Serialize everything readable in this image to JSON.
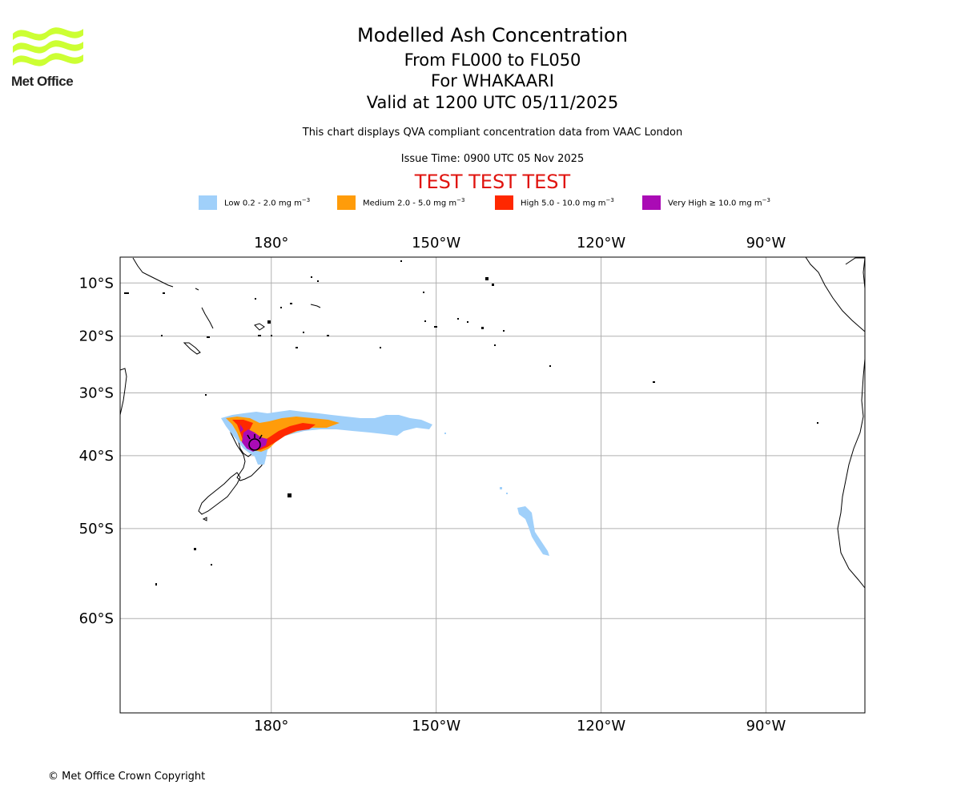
{
  "logo": {
    "text": "Met Office",
    "color": "#ccff33"
  },
  "header": {
    "title": "Modelled Ash Concentration",
    "levels": "From FL000 to FL050",
    "volcano": "For WHAKAARI",
    "valid": "Valid at 1200 UTC 05/11/2025",
    "note": "This chart displays QVA compliant concentration data from VAAC London",
    "issue": "Issue Time: 0900 UTC 05 Nov 2025",
    "test": "TEST TEST TEST"
  },
  "legend": [
    {
      "label": "Low 0.2 - 2.0 mg m",
      "color": "#a0d0fa"
    },
    {
      "label": "Medium 2.0 - 5.0 mg m",
      "color": "#ff9c0a"
    },
    {
      "label": "High 5.0 - 10.0 mg m",
      "color": "#ff2800"
    },
    {
      "label": "Very High ≥ 10.0 mg m",
      "color": "#aa0bb5"
    }
  ],
  "legend_unit_exponent": "−3",
  "map": {
    "lon_ticks": [
      "180°",
      "150°W",
      "120°W",
      "90°W"
    ],
    "lon_values": [
      180,
      210,
      240,
      270
    ],
    "lat_ticks": [
      "10°S",
      "20°S",
      "30°S",
      "40°S",
      "50°S",
      "60°S"
    ],
    "lat_values": [
      -10,
      -20,
      -30,
      -40,
      -50,
      -60
    ],
    "lon_range": [
      152.5,
      288
    ],
    "lat_range": [
      -68,
      -5
    ],
    "volcano_location": {
      "name": "WHAKAARI",
      "lat": -37.5,
      "lon": 177.2
    }
  },
  "footer": {
    "copyright": "© Met Office Crown Copyright"
  }
}
